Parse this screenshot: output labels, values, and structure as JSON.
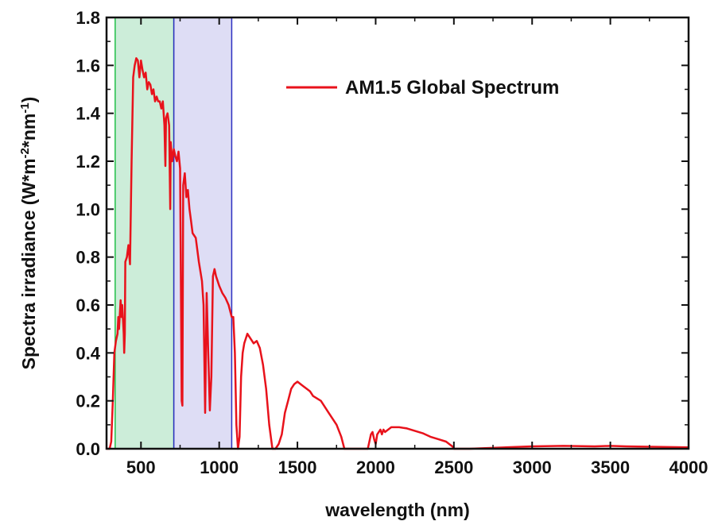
{
  "chart_data": {
    "type": "line",
    "xlabel": "wavelength (nm)",
    "ylabel_main": "Spectra irradiance (W*m",
    "ylabel_sup1": "-2",
    "ylabel_mid": "*nm",
    "ylabel_sup2": "-1",
    "ylabel_end": ")",
    "xlim": [
      280,
      4000
    ],
    "ylim": [
      0,
      1.8
    ],
    "xticks": [
      "500",
      "1000",
      "1500",
      "2000",
      "2500",
      "3000",
      "3500",
      "4000"
    ],
    "yticks": [
      "0.0",
      "0.2",
      "0.4",
      "0.6",
      "0.8",
      "1.0",
      "1.2",
      "1.4",
      "1.6",
      "1.8"
    ],
    "legend_position": "top-right",
    "grid": false,
    "colors": {
      "series": "#e8121b",
      "uv_vis_band_fill": "#bfe8cf",
      "uv_vis_band_edge": "#22c04a",
      "nir_band_fill": "#d6d4f2",
      "nir_band_edge": "#2d2fc0"
    },
    "bands": [
      {
        "x0": 335,
        "x1": 710,
        "color": "green"
      },
      {
        "x0": 710,
        "x1": 1080,
        "color": "blue"
      }
    ],
    "series": [
      {
        "name": "AM1.5 Global Spectrum",
        "x": [
          280,
          300,
          310,
          320,
          330,
          340,
          350,
          355,
          360,
          370,
          375,
          380,
          390,
          393,
          397,
          400,
          410,
          420,
          430,
          440,
          450,
          460,
          470,
          480,
          490,
          500,
          510,
          520,
          530,
          540,
          550,
          560,
          570,
          580,
          590,
          600,
          610,
          620,
          630,
          640,
          650,
          656,
          660,
          670,
          680,
          687,
          690,
          700,
          710,
          720,
          730,
          740,
          750,
          760,
          765,
          770,
          780,
          790,
          800,
          810,
          820,
          830,
          850,
          870,
          890,
          900,
          910,
          920,
          930,
          940,
          950,
          960,
          970,
          980,
          990,
          1000,
          1020,
          1040,
          1060,
          1080,
          1090,
          1100,
          1110,
          1120,
          1130,
          1140,
          1150,
          1160,
          1180,
          1200,
          1220,
          1240,
          1260,
          1280,
          1300,
          1320,
          1340,
          1350,
          1360,
          1380,
          1400,
          1420,
          1440,
          1460,
          1480,
          1500,
          1520,
          1540,
          1560,
          1580,
          1600,
          1650,
          1700,
          1750,
          1780,
          1800,
          1810,
          1820,
          1850,
          1900,
          1950,
          1970,
          1980,
          1990,
          2000,
          2010,
          2020,
          2030,
          2040,
          2050,
          2060,
          2080,
          2100,
          2150,
          2200,
          2250,
          2300,
          2350,
          2400,
          2450,
          2470,
          2490,
          2500,
          2600,
          2800,
          3000,
          3200,
          3400,
          3500,
          3600,
          3800,
          4000
        ],
        "y": [
          0.0,
          0.0,
          0.03,
          0.2,
          0.4,
          0.45,
          0.48,
          0.55,
          0.5,
          0.62,
          0.55,
          0.6,
          0.48,
          0.4,
          0.48,
          0.78,
          0.8,
          0.85,
          0.77,
          1.2,
          1.55,
          1.6,
          1.63,
          1.62,
          1.55,
          1.62,
          1.58,
          1.55,
          1.57,
          1.5,
          1.53,
          1.52,
          1.48,
          1.5,
          1.45,
          1.47,
          1.45,
          1.45,
          1.42,
          1.45,
          1.35,
          1.18,
          1.38,
          1.4,
          1.35,
          1.0,
          1.28,
          1.2,
          1.25,
          1.22,
          1.2,
          1.24,
          1.17,
          0.2,
          0.18,
          1.1,
          1.15,
          1.05,
          1.08,
          1.0,
          0.95,
          0.9,
          0.88,
          0.78,
          0.7,
          0.6,
          0.15,
          0.65,
          0.4,
          0.16,
          0.3,
          0.72,
          0.75,
          0.72,
          0.7,
          0.68,
          0.65,
          0.63,
          0.6,
          0.55,
          0.55,
          0.4,
          0.1,
          0.0,
          0.05,
          0.3,
          0.4,
          0.44,
          0.48,
          0.46,
          0.44,
          0.45,
          0.42,
          0.35,
          0.25,
          0.1,
          0.0,
          0.0,
          0.0,
          0.02,
          0.06,
          0.15,
          0.2,
          0.25,
          0.27,
          0.28,
          0.27,
          0.26,
          0.25,
          0.24,
          0.22,
          0.2,
          0.15,
          0.1,
          0.05,
          0.0,
          0.0,
          0.0,
          0.0,
          0.0,
          0.0,
          0.06,
          0.07,
          0.04,
          0.02,
          0.06,
          0.07,
          0.08,
          0.06,
          0.08,
          0.07,
          0.08,
          0.09,
          0.09,
          0.085,
          0.075,
          0.065,
          0.05,
          0.04,
          0.03,
          0.02,
          0.01,
          0.0,
          0.0,
          0.005,
          0.01,
          0.012,
          0.01,
          0.012,
          0.01,
          0.008,
          0.006
        ]
      }
    ]
  }
}
